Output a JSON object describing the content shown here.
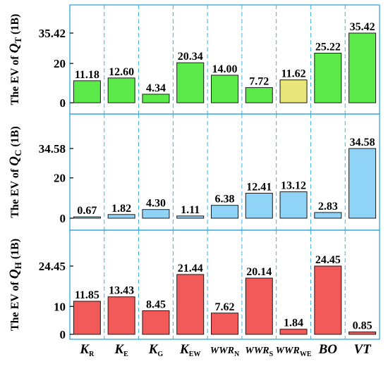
{
  "chart_data": {
    "type": "bar",
    "layout": "three stacked panels sharing x categories",
    "grid": false,
    "legend": "none",
    "categories": [
      {
        "base": "K",
        "sub": "R"
      },
      {
        "base": "K",
        "sub": "E"
      },
      {
        "base": "K",
        "sub": "G"
      },
      {
        "base": "K",
        "sub": "EW"
      },
      {
        "base": "WWR",
        "sub": "N"
      },
      {
        "base": "WWR",
        "sub": "S"
      },
      {
        "base": "WWR",
        "sub": "WE"
      },
      {
        "base": "BO",
        "sub": ""
      },
      {
        "base": "VT",
        "sub": ""
      }
    ],
    "panels": [
      {
        "ylabel_prefix": "The EV of ",
        "ylabel_q": "Q",
        "ylabel_sub": "T",
        "ylabel_suffix": " (1B)",
        "ylim": [
          0,
          35.42
        ],
        "yticks": [
          0,
          20,
          35.42
        ],
        "values": [
          11.18,
          12.6,
          4.34,
          20.34,
          14.0,
          7.72,
          11.62,
          25.22,
          35.42
        ],
        "labels": [
          "11.18",
          "12.60",
          "4.34",
          "20.34",
          "14.00",
          "7.72",
          "11.62",
          "25.22",
          "35.42"
        ],
        "colors": [
          "#5bea4a",
          "#5bea4a",
          "#5bea4a",
          "#5bea4a",
          "#5bea4a",
          "#5bea4a",
          "#e8e57a",
          "#5bea4a",
          "#5bea4a"
        ]
      },
      {
        "ylabel_prefix": "The EV of ",
        "ylabel_q": "Q",
        "ylabel_sub": "C",
        "ylabel_suffix": " (1B)",
        "ylim": [
          0,
          34.58
        ],
        "yticks": [
          0,
          20,
          34.58
        ],
        "values": [
          0.67,
          1.82,
          4.3,
          1.11,
          6.38,
          12.41,
          13.12,
          2.83,
          34.58
        ],
        "labels": [
          "0.67",
          "1.82",
          "4.30",
          "1.11",
          "6.38",
          "12.41",
          "13.12",
          "2.83",
          "34.58"
        ],
        "colors": [
          "#8fd3f7",
          "#8fd3f7",
          "#8fd3f7",
          "#8fd3f7",
          "#8fd3f7",
          "#8fd3f7",
          "#8fd3f7",
          "#8fd3f7",
          "#8fd3f7"
        ]
      },
      {
        "ylabel_prefix": "The EV of ",
        "ylabel_q": "Q",
        "ylabel_sub": "H",
        "ylabel_suffix": " (1B)",
        "ylim": [
          0,
          24.45
        ],
        "yticks": [
          0,
          10,
          24.45
        ],
        "values": [
          11.85,
          13.43,
          8.45,
          21.44,
          7.62,
          20.14,
          1.84,
          24.45,
          0.85
        ],
        "labels": [
          "11.85",
          "13.43",
          "8.45",
          "21.44",
          "7.62",
          "20.14",
          "1.84",
          "24.45",
          "0.85"
        ],
        "colors": [
          "#f25a5a",
          "#f25a5a",
          "#f25a5a",
          "#f25a5a",
          "#f25a5a",
          "#f25a5a",
          "#f25a5a",
          "#f25a5a",
          "#f25a5a"
        ]
      }
    ]
  }
}
